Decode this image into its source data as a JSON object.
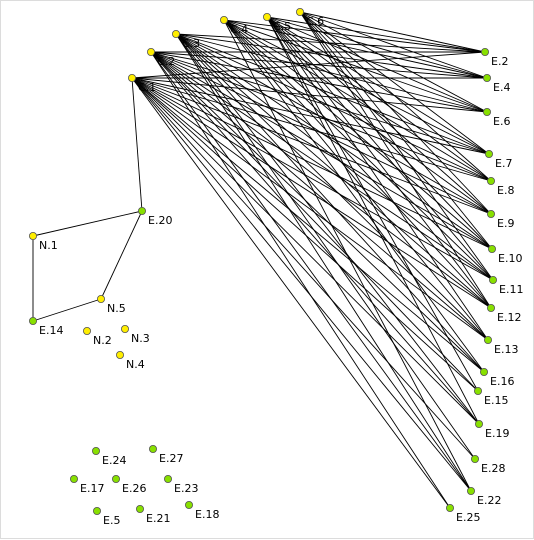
{
  "nodes": [
    {
      "id": "C.1",
      "label": "C.1",
      "color": "#ffee00"
    },
    {
      "id": "C.2",
      "label": "C.2",
      "color": "#ffee00"
    },
    {
      "id": "C.3",
      "label": "C.3",
      "color": "#ffee00"
    },
    {
      "id": "C.4",
      "label": "C.4",
      "color": "#ffee00"
    },
    {
      "id": "C.5",
      "label": "C.5",
      "color": "#ffee00"
    },
    {
      "id": "C.6",
      "label": "C.6",
      "color": "#ffee00"
    },
    {
      "id": "N.1",
      "label": "N.1",
      "color": "#ffee00"
    },
    {
      "id": "N.2",
      "label": "N.2",
      "color": "#ffee00"
    },
    {
      "id": "N.3",
      "label": "N.3",
      "color": "#ffee00"
    },
    {
      "id": "N.4",
      "label": "N.4",
      "color": "#ffee00"
    },
    {
      "id": "N.5",
      "label": "N.5",
      "color": "#ffee00"
    },
    {
      "id": "E.2",
      "label": "E.2",
      "color": "#88e000"
    },
    {
      "id": "E.4",
      "label": "E.4",
      "color": "#88e000"
    },
    {
      "id": "E.6",
      "label": "E.6",
      "color": "#88e000"
    },
    {
      "id": "E.7",
      "label": "E.7",
      "color": "#88e000"
    },
    {
      "id": "E.8",
      "label": "E.8",
      "color": "#88e000"
    },
    {
      "id": "E.9",
      "label": "E.9",
      "color": "#88e000"
    },
    {
      "id": "E.10",
      "label": "E.10",
      "color": "#88e000"
    },
    {
      "id": "E.11",
      "label": "E.11",
      "color": "#88e000"
    },
    {
      "id": "E.12",
      "label": "E.12",
      "color": "#88e000"
    },
    {
      "id": "E.13",
      "label": "E.13",
      "color": "#88e000"
    },
    {
      "id": "E.16",
      "label": "E.16",
      "color": "#88e000"
    },
    {
      "id": "E.15",
      "label": "E.15",
      "color": "#88e000"
    },
    {
      "id": "E.19",
      "label": "E.19",
      "color": "#88e000"
    },
    {
      "id": "E.28",
      "label": "E.28",
      "color": "#88e000"
    },
    {
      "id": "E.22",
      "label": "E.22",
      "color": "#88e000"
    },
    {
      "id": "E.25",
      "label": "E.25",
      "color": "#88e000"
    },
    {
      "id": "E.20",
      "label": "E.20",
      "color": "#88e000"
    },
    {
      "id": "E.14",
      "label": "E.14",
      "color": "#88e000"
    },
    {
      "id": "E.24",
      "label": "E.24",
      "color": "#88e000"
    },
    {
      "id": "E.27",
      "label": "E.27",
      "color": "#88e000"
    },
    {
      "id": "E.17",
      "label": "E.17",
      "color": "#88e000"
    },
    {
      "id": "E.26",
      "label": "E.26",
      "color": "#88e000"
    },
    {
      "id": "E.23",
      "label": "E.23",
      "color": "#88e000"
    },
    {
      "id": "E.5",
      "label": "E.5",
      "color": "#88e000"
    },
    {
      "id": "E.21",
      "label": "E.21",
      "color": "#88e000"
    },
    {
      "id": "E.18",
      "label": "E.18",
      "color": "#88e000"
    }
  ],
  "edges": [
    [
      "C.1",
      "E.20"
    ],
    [
      "E.20",
      "N.1"
    ],
    [
      "E.20",
      "N.5"
    ],
    [
      "N.1",
      "E.14"
    ],
    [
      "E.14",
      "N.5"
    ],
    [
      "C.1",
      "E.2"
    ],
    [
      "C.1",
      "E.4"
    ],
    [
      "C.1",
      "E.6"
    ],
    [
      "C.1",
      "E.7"
    ],
    [
      "C.1",
      "E.8"
    ],
    [
      "C.1",
      "E.9"
    ],
    [
      "C.1",
      "E.10"
    ],
    [
      "C.1",
      "E.11"
    ],
    [
      "C.1",
      "E.12"
    ],
    [
      "C.1",
      "E.13"
    ],
    [
      "C.1",
      "E.16"
    ],
    [
      "C.1",
      "E.15"
    ],
    [
      "C.1",
      "E.19"
    ],
    [
      "C.1",
      "E.28"
    ],
    [
      "C.1",
      "E.22"
    ],
    [
      "C.1",
      "E.25"
    ],
    [
      "C.2",
      "E.2"
    ],
    [
      "C.2",
      "E.4"
    ],
    [
      "C.2",
      "E.6"
    ],
    [
      "C.2",
      "E.7"
    ],
    [
      "C.2",
      "E.8"
    ],
    [
      "C.2",
      "E.9"
    ],
    [
      "C.2",
      "E.10"
    ],
    [
      "C.2",
      "E.11"
    ],
    [
      "C.2",
      "E.12"
    ],
    [
      "C.2",
      "E.13"
    ],
    [
      "C.2",
      "E.16"
    ],
    [
      "C.2",
      "E.15"
    ],
    [
      "C.2",
      "E.19"
    ],
    [
      "C.2",
      "E.22"
    ],
    [
      "C.2",
      "E.25"
    ],
    [
      "C.3",
      "E.2"
    ],
    [
      "C.3",
      "E.4"
    ],
    [
      "C.3",
      "E.6"
    ],
    [
      "C.3",
      "E.7"
    ],
    [
      "C.3",
      "E.8"
    ],
    [
      "C.3",
      "E.9"
    ],
    [
      "C.3",
      "E.10"
    ],
    [
      "C.3",
      "E.11"
    ],
    [
      "C.3",
      "E.12"
    ],
    [
      "C.3",
      "E.13"
    ],
    [
      "C.3",
      "E.16"
    ],
    [
      "C.3",
      "E.19"
    ],
    [
      "C.3",
      "E.28"
    ],
    [
      "C.3",
      "E.22"
    ],
    [
      "C.4",
      "E.2"
    ],
    [
      "C.4",
      "E.4"
    ],
    [
      "C.4",
      "E.6"
    ],
    [
      "C.4",
      "E.7"
    ],
    [
      "C.4",
      "E.8"
    ],
    [
      "C.4",
      "E.9"
    ],
    [
      "C.4",
      "E.10"
    ],
    [
      "C.4",
      "E.11"
    ],
    [
      "C.4",
      "E.12"
    ],
    [
      "C.4",
      "E.13"
    ],
    [
      "C.4",
      "E.16"
    ],
    [
      "C.4",
      "E.22"
    ],
    [
      "C.5",
      "E.2"
    ],
    [
      "C.5",
      "E.4"
    ],
    [
      "C.5",
      "E.6"
    ],
    [
      "C.5",
      "E.7"
    ],
    [
      "C.5",
      "E.8"
    ],
    [
      "C.5",
      "E.9"
    ],
    [
      "C.5",
      "E.10"
    ],
    [
      "C.5",
      "E.11"
    ],
    [
      "C.5",
      "E.12"
    ],
    [
      "C.5",
      "E.13"
    ],
    [
      "C.5",
      "E.15"
    ],
    [
      "C.5",
      "E.19"
    ],
    [
      "C.6",
      "E.2"
    ],
    [
      "C.6",
      "E.4"
    ],
    [
      "C.6",
      "E.6"
    ],
    [
      "C.6",
      "E.7"
    ],
    [
      "C.6",
      "E.8"
    ],
    [
      "C.6",
      "E.9"
    ],
    [
      "C.6",
      "E.10"
    ],
    [
      "C.6",
      "E.11"
    ],
    [
      "C.6",
      "E.12"
    ]
  ]
}
